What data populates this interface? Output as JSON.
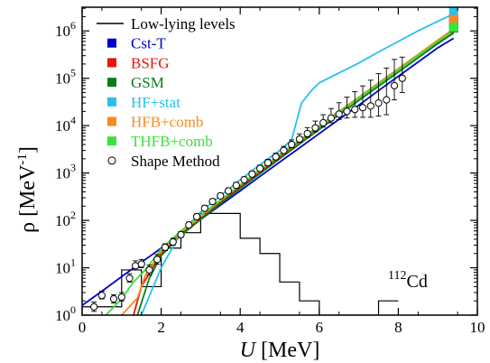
{
  "chart_data": {
    "type": "line",
    "title": "",
    "xlabel": "U [MeV]",
    "ylabel": "ρ [MeV⁻¹]",
    "xlim": [
      0,
      10
    ],
    "ylim_log10": [
      0,
      6.5
    ],
    "yscale": "log",
    "grid": false,
    "legend_position": "top-left",
    "x_ticks": [
      0,
      2,
      4,
      6,
      8,
      10
    ],
    "y_ticks_exp": [
      0,
      1,
      2,
      3,
      4,
      5,
      6
    ],
    "annotation": {
      "sup": "112",
      "text": "Cd"
    },
    "histogram": {
      "name": "Low-lying levels",
      "color": "#000000",
      "edges": [
        0,
        0.5,
        1.0,
        1.5,
        2.0,
        2.5,
        3.0,
        3.5,
        4.0,
        4.5,
        5.0,
        5.5,
        6.0,
        6.5,
        7.0,
        7.5,
        8.0
      ],
      "counts": [
        1.5,
        1.5,
        9,
        4,
        26,
        55,
        140,
        140,
        42,
        20,
        5,
        2,
        1,
        1,
        1,
        2
      ]
    },
    "series": [
      {
        "name": "Cst-T",
        "color": "#0000cc",
        "x": [
          0,
          0.5,
          1.0,
          1.5,
          2.0,
          2.5,
          3.0,
          3.5,
          4.0,
          4.5,
          5.0,
          5.5,
          6.0,
          6.5,
          7.0,
          7.5,
          8.0,
          8.5,
          9.0,
          9.4
        ],
        "y": [
          1.6,
          3.2,
          6.5,
          13,
          26,
          52,
          105,
          210,
          420,
          850,
          1700,
          3400,
          6800,
          13600,
          27000,
          55000,
          110000,
          220000,
          440000,
          700000
        ],
        "marker": {
          "x": 9.4,
          "y": 1400000
        }
      },
      {
        "name": "BSFG",
        "color": "#e8150b",
        "x": [
          1.3,
          1.5,
          2.0,
          2.5,
          3.0,
          3.5,
          4.0,
          4.5,
          5.0,
          5.5,
          6.0,
          6.5,
          7.0,
          7.5,
          8.0,
          8.5,
          9.0,
          9.4
        ],
        "y": [
          1.0,
          4,
          20,
          50,
          110,
          240,
          510,
          1050,
          2200,
          4600,
          9300,
          19000,
          38000,
          75000,
          150000,
          300000,
          580000,
          950000
        ],
        "marker": {
          "x": 9.4,
          "y": 1800000
        }
      },
      {
        "name": "GSM",
        "color": "#0a7d1a",
        "x": [
          1.4,
          1.7,
          2.0,
          2.5,
          3.0,
          3.5,
          4.0,
          4.5,
          5.0,
          5.5,
          6.0,
          6.5,
          7.0,
          7.5,
          8.0,
          8.5,
          9.0,
          9.4
        ],
        "y": [
          1.0,
          6,
          18,
          48,
          105,
          225,
          470,
          970,
          2000,
          4100,
          8300,
          17000,
          34000,
          68000,
          135000,
          270000,
          540000,
          900000
        ],
        "marker": {
          "x": 9.4,
          "y": 1150000
        }
      },
      {
        "name": "HF+stat",
        "color": "#27c1ee",
        "x": [
          1.5,
          2.0,
          2.5,
          3.0,
          3.5,
          4.0,
          4.5,
          5.0,
          5.3,
          5.55,
          5.8,
          6.0,
          6.5,
          7.0,
          7.5,
          8.0,
          8.5,
          9.0,
          9.4
        ],
        "y": [
          1.0,
          10,
          55,
          150,
          330,
          720,
          1500,
          3000,
          5000,
          30000,
          55000,
          80000,
          130000,
          210000,
          360000,
          600000,
          1000000,
          1600000,
          2300000
        ],
        "marker": {
          "x": 9.4,
          "y": 2600000
        }
      },
      {
        "name": "HFB+comb",
        "color": "#f58a1f",
        "x": [
          1.0,
          1.4,
          1.6,
          2.0,
          2.5,
          3.0,
          3.5,
          4.0,
          4.5,
          5.0,
          5.5,
          6.0,
          6.5,
          7.0,
          7.5,
          8.0,
          8.5,
          9.0,
          9.4
        ],
        "y": [
          1.0,
          2.3,
          7,
          22,
          55,
          125,
          260,
          560,
          1200,
          2500,
          5000,
          10000,
          20000,
          40000,
          80000,
          160000,
          320000,
          640000,
          1100000
        ],
        "marker": {
          "x": 9.4,
          "y": 1750000
        }
      },
      {
        "name": "THFB+comb",
        "color": "#38e33a",
        "x": [
          0.6,
          1.0,
          1.3,
          1.6,
          2.0,
          2.5,
          3.0,
          3.5,
          4.0,
          4.5,
          5.0,
          5.5,
          6.0,
          6.5,
          7.0,
          7.5,
          8.0,
          8.5,
          9.0,
          9.4
        ],
        "y": [
          1.0,
          2.2,
          5,
          9,
          25,
          60,
          130,
          270,
          560,
          1150,
          2400,
          4800,
          9500,
          19000,
          38000,
          75000,
          150000,
          300000,
          600000,
          1000000
        ],
        "marker": {
          "x": 9.4,
          "y": 1200000
        }
      }
    ],
    "points": {
      "name": "Shape Method",
      "color": "#000000",
      "x": [
        0.3,
        0.5,
        0.8,
        1.0,
        1.2,
        1.35,
        1.5,
        1.7,
        1.9,
        2.1,
        2.3,
        2.5,
        2.7,
        2.9,
        3.1,
        3.3,
        3.5,
        3.7,
        3.9,
        4.1,
        4.3,
        4.5,
        4.7,
        4.9,
        5.1,
        5.3,
        5.5,
        5.7,
        5.9,
        6.1,
        6.3,
        6.5,
        6.7,
        6.9,
        7.1,
        7.3,
        7.5,
        7.7,
        7.9,
        8.1
      ],
      "y": [
        1.5,
        2.6,
        2.2,
        2.4,
        6,
        11,
        12,
        9,
        15,
        27,
        35,
        50,
        80,
        120,
        180,
        250,
        330,
        420,
        550,
        720,
        950,
        1250,
        1650,
        2200,
        3000,
        4000,
        5200,
        6800,
        9000,
        11500,
        14500,
        17500,
        20000,
        22000,
        24000,
        26000,
        30000,
        35000,
        70000,
        100000
      ],
      "err_down": [
        0.3,
        0.4,
        0.4,
        0.4,
        1,
        2,
        2,
        2,
        3,
        4,
        5,
        6,
        10,
        14,
        20,
        28,
        35,
        45,
        60,
        80,
        110,
        150,
        200,
        280,
        400,
        600,
        800,
        1100,
        1600,
        2200,
        3000,
        4000,
        5500,
        7000,
        9000,
        11000,
        14000,
        18000,
        35000,
        50000
      ],
      "err_up": [
        0.4,
        0.6,
        0.5,
        0.6,
        1.5,
        3,
        3,
        2.5,
        4,
        5,
        7,
        8,
        12,
        18,
        26,
        35,
        45,
        60,
        80,
        110,
        150,
        210,
        290,
        420,
        650,
        1000,
        1500,
        2300,
        3500,
        5500,
        8500,
        13000,
        20000,
        30000,
        45000,
        65000,
        95000,
        130000,
        180000,
        180000
      ]
    }
  }
}
